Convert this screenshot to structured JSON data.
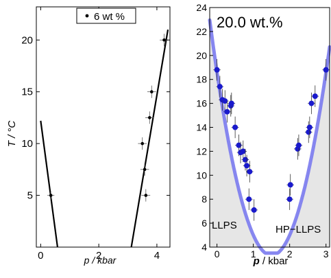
{
  "chart_data": [
    {
      "type": "scatter",
      "title": "",
      "legend": {
        "label": "6 wt %",
        "placement": "top-right"
      },
      "xlabel": "p / kbar",
      "ylabel": "T / °C",
      "xlim": [
        -0.15,
        4.45
      ],
      "ylim": [
        0,
        23.2
      ],
      "xticks": [
        0,
        2,
        4
      ],
      "yticks": [
        5,
        10,
        15,
        20
      ],
      "grid": false,
      "points": [
        {
          "x": 0.35,
          "y": 5.0,
          "xerr": 0.12,
          "yerr": 0.4
        },
        {
          "x": 3.5,
          "y": 10.0,
          "xerr": 0.15,
          "yerr": 0.6
        },
        {
          "x": 3.58,
          "y": 7.5,
          "xerr": 0.15,
          "yerr": 0.6
        },
        {
          "x": 3.62,
          "y": 5.0,
          "xerr": 0.15,
          "yerr": 0.6
        },
        {
          "x": 3.75,
          "y": 12.5,
          "xerr": 0.15,
          "yerr": 0.6
        },
        {
          "x": 3.82,
          "y": 15.0,
          "xerr": 0.15,
          "yerr": 0.6
        },
        {
          "x": 4.25,
          "y": 20.0,
          "xerr": 0.15,
          "yerr": 0.6
        }
      ],
      "lines": [
        {
          "x": [
            0.0,
            0.58
          ],
          "y": [
            12.2,
            0.0
          ]
        },
        {
          "x": [
            3.12,
            4.38
          ],
          "y": [
            0.0,
            21.0
          ]
        }
      ]
    },
    {
      "type": "scatter",
      "title": "20.0 wt.%",
      "xlabel": "p / kbar",
      "ylabel": "",
      "xlim": [
        -0.2,
        3.1
      ],
      "ylim": [
        4,
        24
      ],
      "xticks": [
        0,
        1,
        2,
        3
      ],
      "yticks": [
        4,
        6,
        8,
        10,
        12,
        14,
        16,
        18,
        20,
        22,
        24
      ],
      "grid": false,
      "annotations": [
        "LLPS",
        "HP−LLPS"
      ],
      "colors": {
        "points": "#1a1acc",
        "curve": "#7a7aee",
        "region": "#e6e6e6"
      },
      "curve": {
        "x_center": 1.5,
        "y_min": 3.3,
        "y_at_zero": 18.6
      },
      "points": [
        {
          "x": 0.0,
          "y": 18.8
        },
        {
          "x": 0.08,
          "y": 17.4
        },
        {
          "x": 0.15,
          "y": 16.3
        },
        {
          "x": 0.22,
          "y": 16.2
        },
        {
          "x": 0.28,
          "y": 15.3
        },
        {
          "x": 0.38,
          "y": 15.8
        },
        {
          "x": 0.4,
          "y": 16.0
        },
        {
          "x": 0.5,
          "y": 14.0
        },
        {
          "x": 0.6,
          "y": 12.5
        },
        {
          "x": 0.65,
          "y": 11.9
        },
        {
          "x": 0.72,
          "y": 12.0
        },
        {
          "x": 0.78,
          "y": 11.3
        },
        {
          "x": 0.82,
          "y": 10.8
        },
        {
          "x": 0.9,
          "y": 10.3
        },
        {
          "x": 0.88,
          "y": 8.0
        },
        {
          "x": 1.02,
          "y": 7.1
        },
        {
          "x": 2.0,
          "y": 8.0
        },
        {
          "x": 2.02,
          "y": 9.2
        },
        {
          "x": 2.22,
          "y": 12.2
        },
        {
          "x": 2.25,
          "y": 12.5
        },
        {
          "x": 2.52,
          "y": 13.6
        },
        {
          "x": 2.55,
          "y": 14.0
        },
        {
          "x": 2.6,
          "y": 16.0
        },
        {
          "x": 2.7,
          "y": 16.6
        },
        {
          "x": 3.0,
          "y": 18.8
        }
      ]
    }
  ]
}
